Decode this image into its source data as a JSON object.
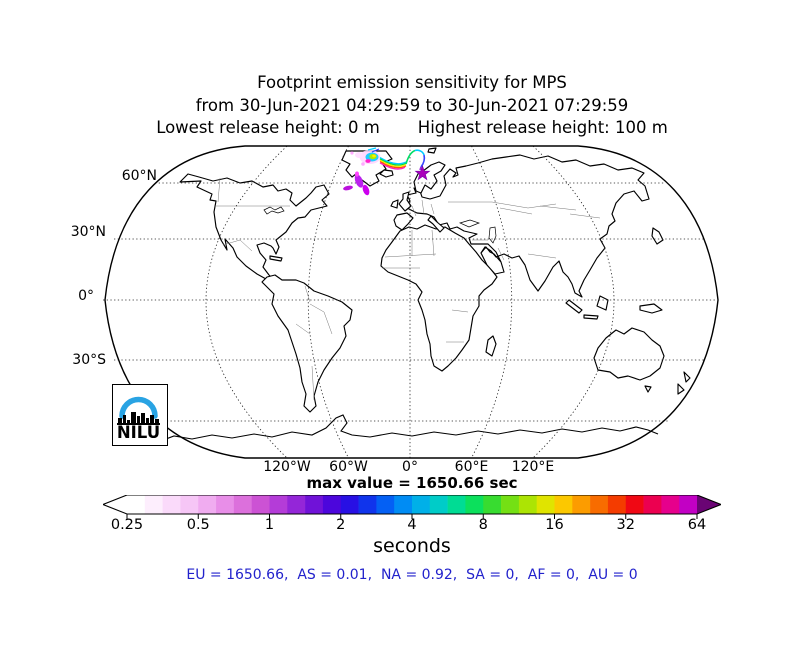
{
  "title": {
    "line1": "Footprint emission sensitivity for MPS",
    "line2": "from 30-Jun-2021 04:29:59 to 30-Jun-2021 07:29:59",
    "line3_left": "Lowest release height: 0 m",
    "line3_right": "Highest release height: 100 m"
  },
  "map": {
    "lat_labels": [
      "60°N",
      "30°N",
      "0°",
      "30°S"
    ],
    "lon_labels": [
      "120°W",
      "60°W",
      "0°",
      "60°E",
      "120°E"
    ],
    "max_value_label": "max value = 1650.66 sec",
    "release_marker": "magenta star on Norwegian coast",
    "plume_region": "North Atlantic between Greenland/Iceland and Norway"
  },
  "colorbar": {
    "ticks": [
      "0.25",
      "0.5",
      "1",
      "2",
      "4",
      "8",
      "16",
      "32",
      "64"
    ],
    "unit": "seconds",
    "under_color": "#ffffff",
    "over_color": "#6a0474",
    "colors": [
      "#ffffff",
      "#fdeefd",
      "#fadafa",
      "#f6c6f6",
      "#f0acf0",
      "#e88ee8",
      "#dc70dc",
      "#cc52d4",
      "#b43cd8",
      "#9426d8",
      "#7012d8",
      "#4c06dc",
      "#2810e4",
      "#1034ec",
      "#0460f4",
      "#008cf4",
      "#00b0e8",
      "#00ccc8",
      "#00dc94",
      "#0ce05c",
      "#38dc30",
      "#74e014",
      "#ace404",
      "#e0e400",
      "#fcc800",
      "#fc9c00",
      "#f86c00",
      "#f43c00",
      "#f00814",
      "#ec0050",
      "#e6008c",
      "#c200c4"
    ]
  },
  "footer": {
    "summary": "EU = 1650.66,  AS = 0.01,  NA = 0.92,  SA = 0,  AF = 0,  AU = 0",
    "color": "#2222cc"
  },
  "logo": {
    "text": "NILU",
    "arc_color": "#29a3e3"
  },
  "chart_data": {
    "type": "heatmap",
    "subtype": "footprint-emission-sensitivity-world-map",
    "title": "Footprint emission sensitivity for MPS",
    "time_range": {
      "from": "30-Jun-2021 04:29:59",
      "to": "30-Jun-2021 07:29:59"
    },
    "release_heights_m": {
      "lowest": 0,
      "highest": 100
    },
    "unit": "seconds",
    "max_value_sec": 1650.66,
    "scale": {
      "type": "logarithmic",
      "ticks": [
        0.25,
        0.5,
        1,
        2,
        4,
        8,
        16,
        32,
        64
      ],
      "extend": "both"
    },
    "graticule": {
      "lat_lines_deg": [
        60,
        30,
        0,
        -30,
        -60
      ],
      "lon_lines_deg": [
        -120,
        -60,
        0,
        60,
        120
      ]
    },
    "region_totals_sec": {
      "EU": 1650.66,
      "AS": 0.01,
      "NA": 0.92,
      "SA": 0,
      "AF": 0,
      "AU": 0
    }
  }
}
